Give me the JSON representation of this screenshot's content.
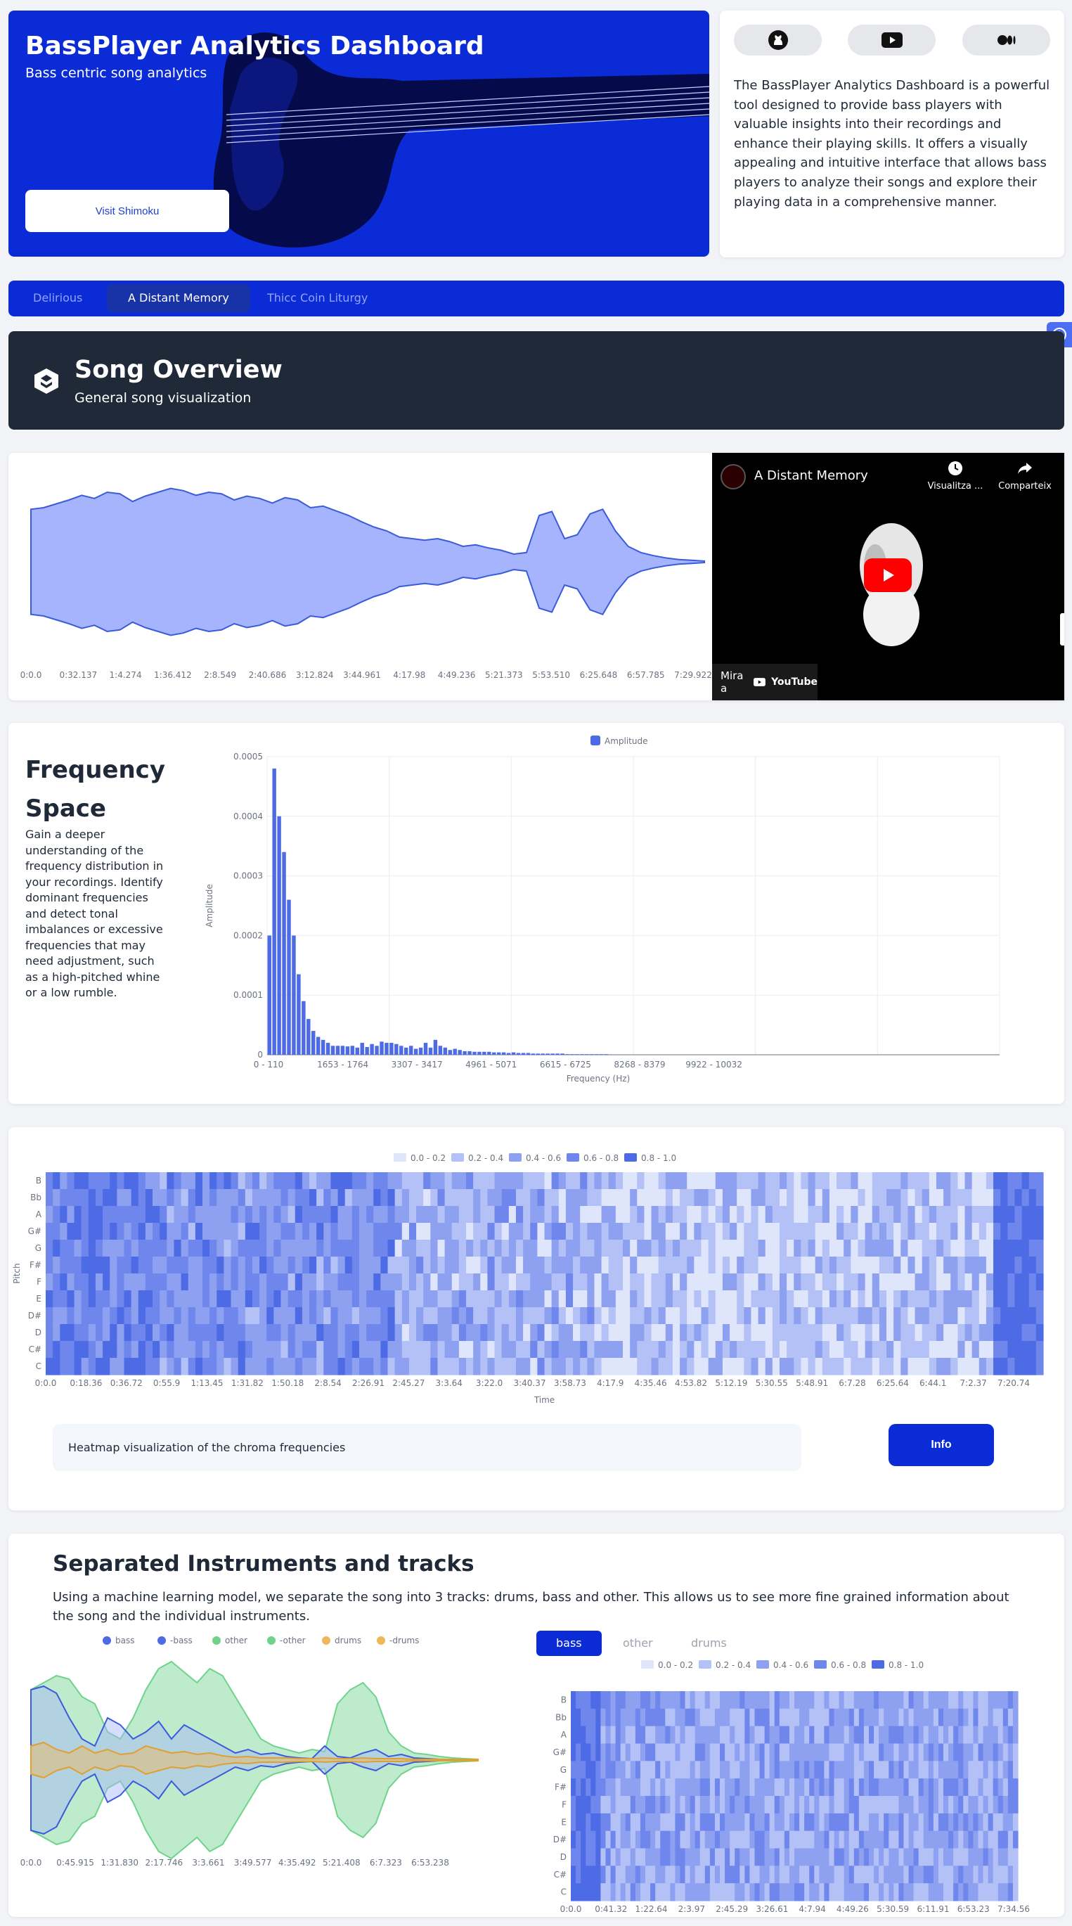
{
  "hero": {
    "title": "BassPlayer Analytics Dashboard",
    "subtitle": "Bass centric song analytics",
    "visit_label": "Visit Shimoku"
  },
  "about": {
    "social_icons": [
      "github-icon",
      "youtube-icon",
      "medium-icon"
    ],
    "text": "The BassPlayer Analytics Dashboard is a powerful tool designed to provide bass players with valuable insights into their recordings and enhance their playing skills. It offers a visually appealing and intuitive interface that allows bass players to analyze their songs and explore their playing data in a comprehensive manner."
  },
  "song_tabs": [
    "Delirious",
    "A Distant Memory",
    "Thicc Coin Liturgy"
  ],
  "active_song_tab": 1,
  "overview": {
    "title": "Song Overview",
    "subtitle": "General song visualization"
  },
  "waveform": {
    "x_ticks": [
      "0:0.0",
      "0:32.137",
      "1:4.274",
      "1:36.412",
      "2:8.549",
      "2:40.686",
      "3:12.824",
      "3:44.961",
      "4:17.98",
      "4:49.236",
      "5:21.373",
      "5:53.510",
      "6:25.648",
      "6:57.785",
      "7:29.922"
    ],
    "color": "#a5b4fc"
  },
  "video": {
    "title": "A Distant Memory",
    "watch_later": "Visualitza ...",
    "share": "Comparteix",
    "watch_on": "Mira a",
    "brand": "YouTube"
  },
  "frequency": {
    "title": "Frequency Space",
    "description": "Gain a deeper understanding of the frequency distribution in your recordings. Identify dominant frequencies and detect tonal imbalances or excessive frequencies that may need adjustment, such as a high-pitched whine or a low rumble."
  },
  "chart_data": [
    {
      "type": "bar",
      "legend": [
        "Amplitude"
      ],
      "xlabel": "Frequency (Hz)",
      "ylabel": "Amplitude",
      "ylim": [
        0,
        0.0005
      ],
      "y_ticks": [
        "0",
        "0.0001",
        "0.0002",
        "0.0003",
        "0.0004",
        "0.0005"
      ],
      "x_tick_labels": [
        "0 - 110",
        "1653 - 1764",
        "3307 - 3417",
        "4961 - 5071",
        "6615 - 6725",
        "8268 - 8379",
        "9922 - 10032"
      ],
      "values": [
        0.0002,
        0.00048,
        0.0004,
        0.00034,
        0.00026,
        0.0002,
        0.000135,
        9e-05,
        6e-05,
        4e-05,
        3e-05,
        2.5e-05,
        2e-05,
        1.5e-05,
        1.5e-05,
        1.5e-05,
        1.4e-05,
        1.5e-05,
        1.2e-05,
        2e-05,
        1.3e-05,
        1.8e-05,
        1.5e-05,
        2.2e-05,
        2e-05,
        2e-05,
        1.8e-05,
        1.5e-05,
        1.2e-05,
        1.5e-05,
        1e-05,
        1.2e-05,
        2e-05,
        1.2e-05,
        2.5e-05,
        1.5e-05,
        1.2e-05,
        8e-06,
        1e-05,
        8e-06,
        6e-06,
        6e-06,
        5e-06,
        5e-06,
        5e-06,
        5e-06,
        4e-06,
        4e-06,
        4e-06,
        3e-06,
        4e-06,
        3e-06,
        3e-06,
        3e-06,
        2e-06,
        2e-06,
        2e-06,
        2e-06,
        2e-06,
        2e-06,
        2e-06,
        1e-06,
        1e-06,
        1e-06,
        1e-06,
        1e-06,
        1e-06,
        1e-06,
        1e-06,
        1e-06
      ]
    },
    {
      "type": "heatmap",
      "xlabel": "Time",
      "ylabel": "Pitch",
      "legend": [
        "0.0 - 0.2",
        "0.2 - 0.4",
        "0.4 - 0.6",
        "0.6 - 0.8",
        "0.8 - 1.0"
      ],
      "pitches": [
        "B",
        "Bb",
        "A",
        "G#",
        "G",
        "F#",
        "F",
        "E",
        "D#",
        "D",
        "C#",
        "C"
      ],
      "x_ticks": [
        "0:0.0",
        "0:18.36",
        "0:36.72",
        "0:55.9",
        "1:13.45",
        "1:31.82",
        "1:50.18",
        "2:8.54",
        "2:26.91",
        "2:45.27",
        "3:3.64",
        "3:22.0",
        "3:40.37",
        "3:58.73",
        "4:17.9",
        "4:35.46",
        "4:53.82",
        "5:12.19",
        "5:30.55",
        "5:48.91",
        "6:7.28",
        "6:25.64",
        "6:44.1",
        "7:2.37",
        "7:20.74"
      ]
    },
    {
      "type": "area",
      "legend": [
        "bass",
        "-bass",
        "other",
        "-other",
        "drums",
        "-drums"
      ],
      "x_ticks": [
        "0:0.0",
        "0:45.915",
        "1:31.830",
        "2:17.746",
        "3:3.661",
        "3:49.577",
        "4:35.492",
        "5:21.408",
        "6:7.323",
        "6:53.238"
      ]
    },
    {
      "type": "heatmap",
      "legend": [
        "0.0 - 0.2",
        "0.2 - 0.4",
        "0.4 - 0.6",
        "0.6 - 0.8",
        "0.8 - 1.0"
      ],
      "pitches": [
        "B",
        "Bb",
        "A",
        "G#",
        "G",
        "F#",
        "F",
        "E",
        "D#",
        "D",
        "C#",
        "C"
      ],
      "x_ticks": [
        "0:0.0",
        "0:41.32",
        "1:22.64",
        "2:3.97",
        "2:45.29",
        "3:26.61",
        "4:7.94",
        "4:49.26",
        "5:30.59",
        "6:11.91",
        "6:53.23",
        "7:34.56"
      ]
    }
  ],
  "heatmap_note": "Heatmap visualization of the chroma frequencies",
  "heatmap_info": "Info",
  "separated": {
    "title": "Separated Instruments and tracks",
    "description": "Using a machine learning model, we separate the song into 3 tracks: drums, bass and other. This allows us to see more fine grained information about the song and the individual instruments.",
    "tabs": [
      "bass",
      "other",
      "drums"
    ],
    "active_tab": 0
  },
  "colors": {
    "primary": "#0a2bd6",
    "dark": "#1f2937",
    "heat": [
      "#dfe5fb",
      "#b4c1f6",
      "#8ea1f1",
      "#6f86ec",
      "#4e6be6"
    ]
  }
}
